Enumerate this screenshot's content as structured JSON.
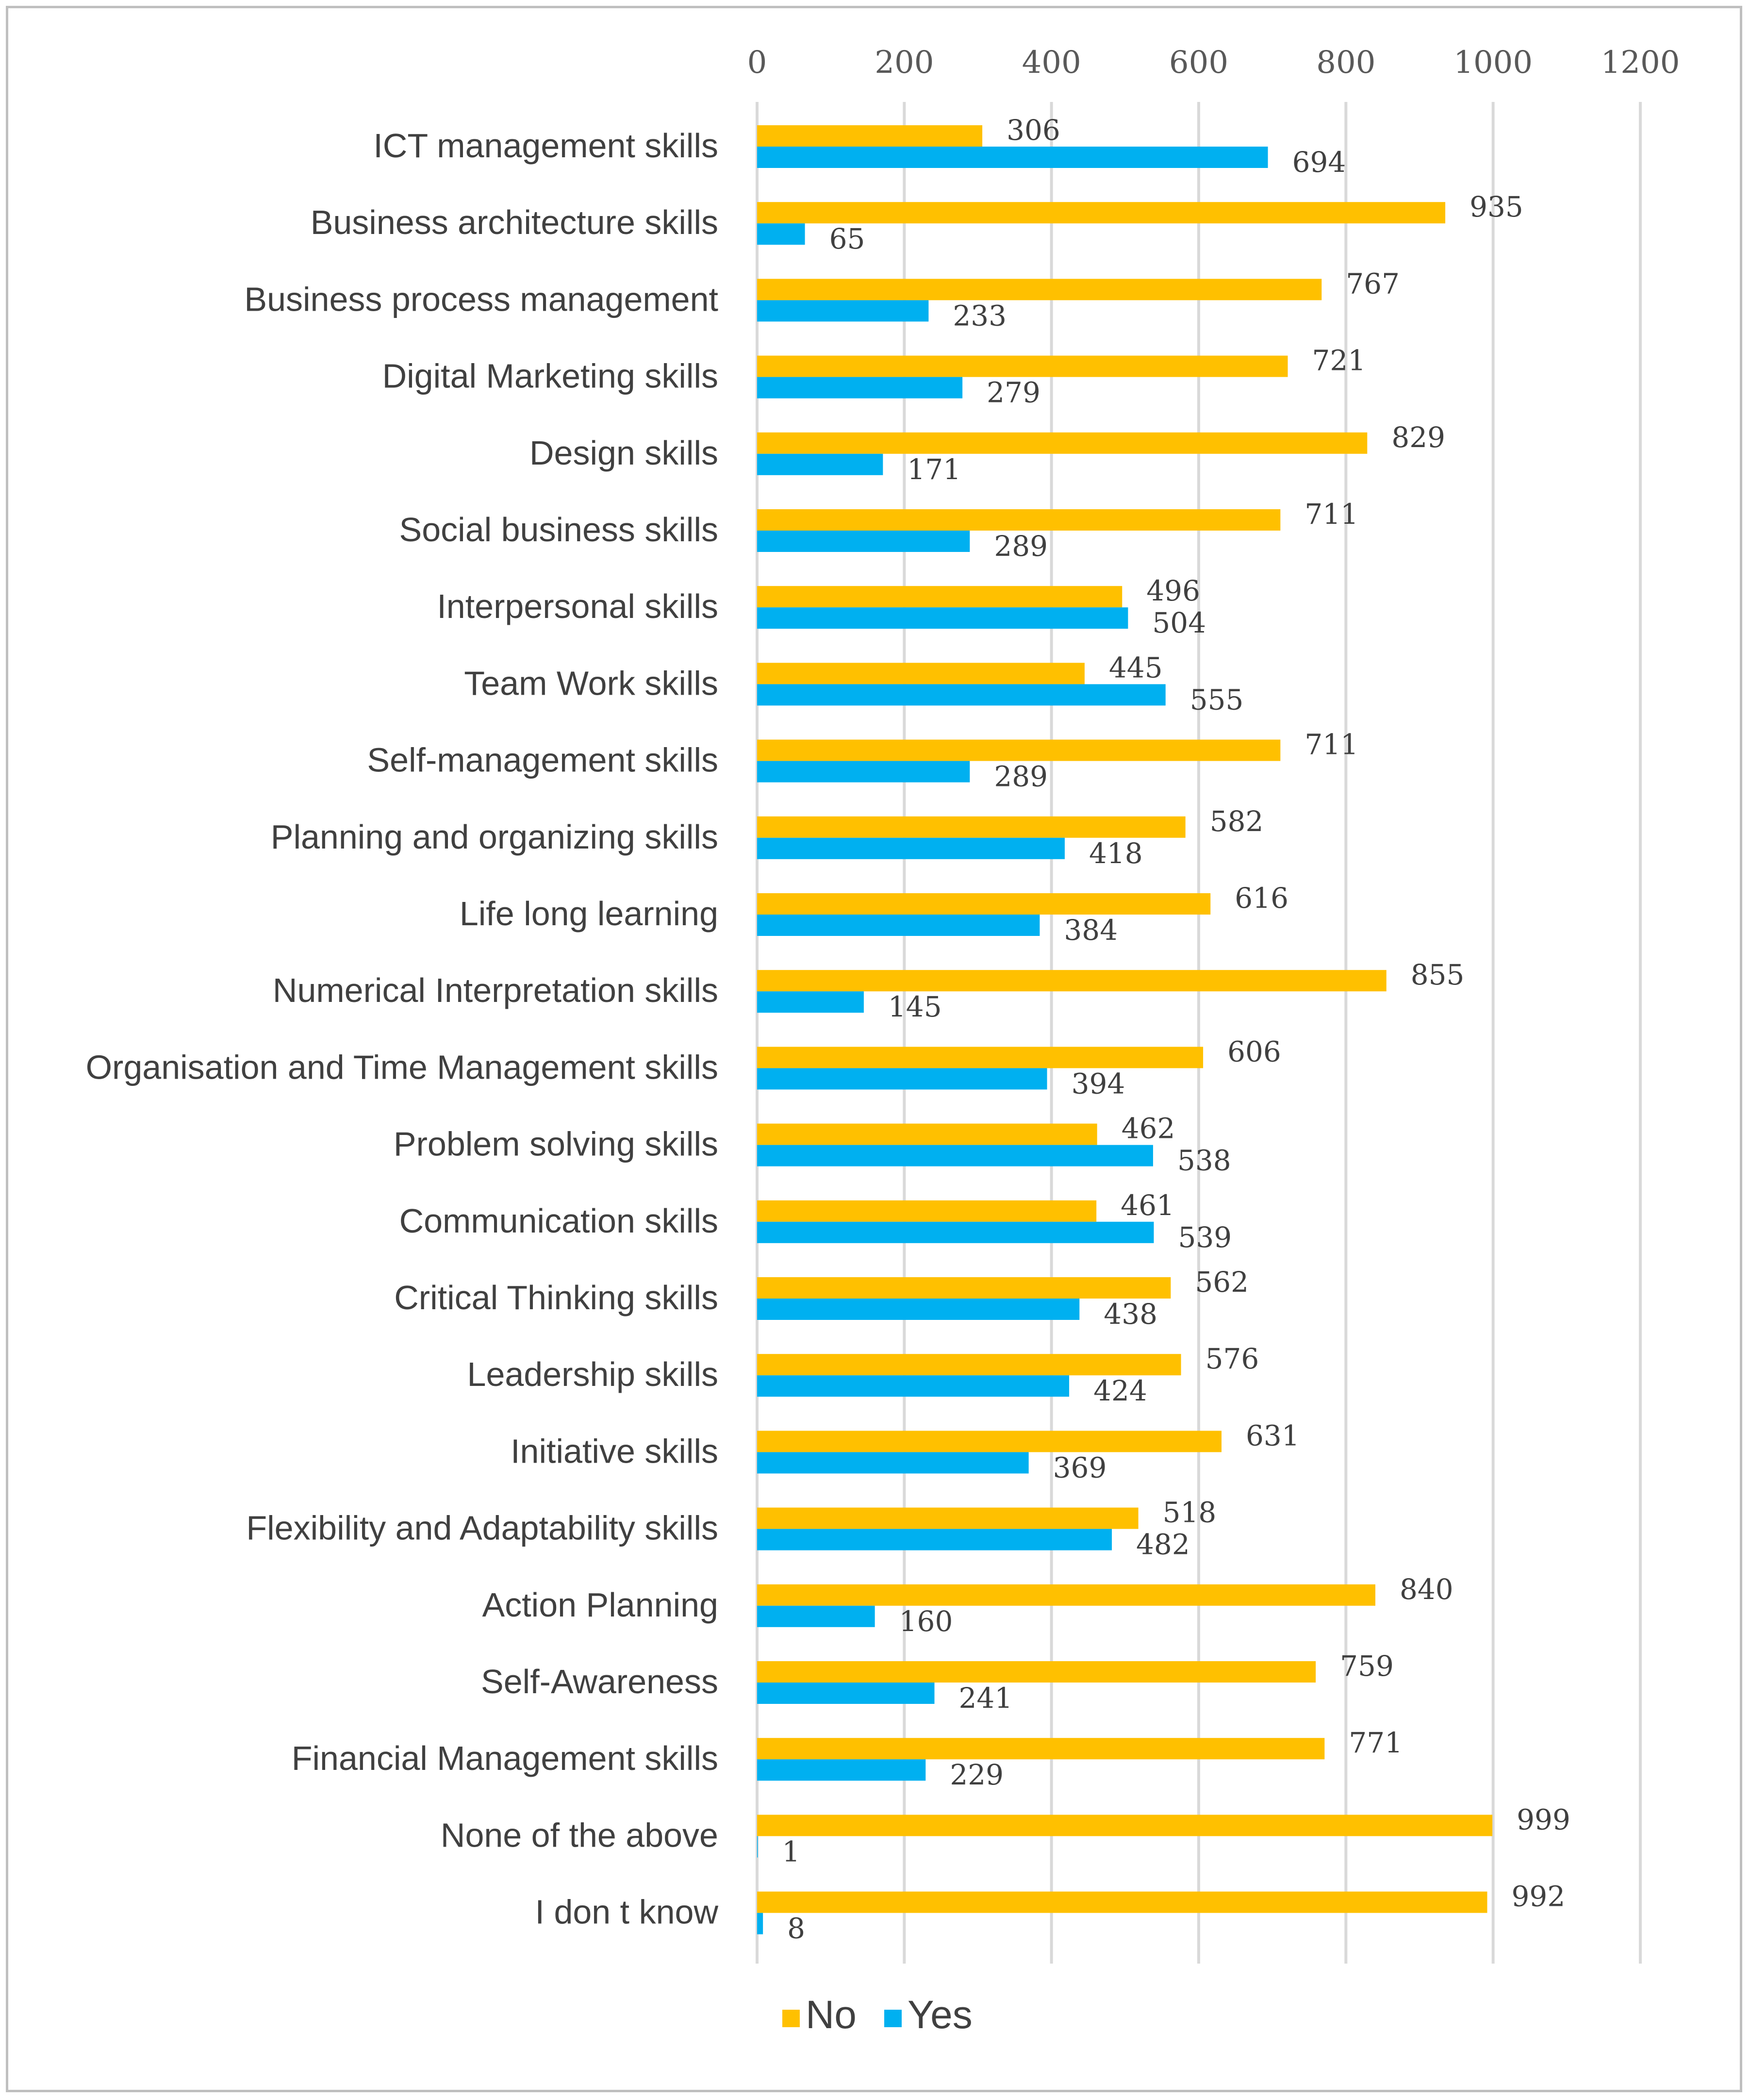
{
  "chart_data": {
    "type": "bar",
    "orientation": "horizontal",
    "title": "",
    "xlabel": "",
    "ylabel": "",
    "xlim": [
      0,
      1200
    ],
    "x_ticks": [
      0,
      200,
      400,
      600,
      800,
      1000,
      1200
    ],
    "x_axis_position": "top",
    "grid": true,
    "legend_position": "bottom",
    "categories": [
      "ICT management skills",
      "Business  architecture skills",
      "Business process management",
      "Digital Marketing skills",
      "Design skills",
      "Social business skills",
      "Interpersonal skills",
      "Team Work skills",
      "Self-management skills",
      "Planning and organizing skills",
      "Life long learning",
      "Numerical Interpretation skills",
      "Organisation and Time Management skills",
      "Problem solving skills",
      "Communication skills",
      "Critical Thinking skills",
      "Leadership skills",
      "Initiative skills",
      "Flexibility and Adaptability skills",
      "Action Planning",
      "Self-Awareness",
      "Financial Management skills",
      "None of the above",
      "I don t know"
    ],
    "series": [
      {
        "name": "No",
        "color": "#ffc000",
        "values": [
          306,
          935,
          767,
          721,
          829,
          711,
          496,
          445,
          711,
          582,
          616,
          855,
          606,
          462,
          461,
          562,
          576,
          631,
          518,
          840,
          759,
          771,
          999,
          992
        ]
      },
      {
        "name": "Yes",
        "color": "#00b0f0",
        "values": [
          694,
          65,
          233,
          279,
          171,
          289,
          504,
          555,
          289,
          418,
          384,
          145,
          394,
          538,
          539,
          438,
          424,
          369,
          482,
          160,
          241,
          229,
          1,
          8
        ]
      }
    ]
  }
}
